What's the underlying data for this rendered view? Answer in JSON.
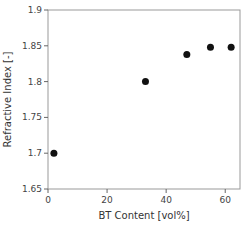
{
  "chart_data": {
    "type": "scatter",
    "xlabel": "BT Content [vol%]",
    "ylabel": "Refractive Index [-]",
    "x": [
      2,
      33,
      47,
      55,
      62
    ],
    "values": [
      1.7,
      1.8,
      1.838,
      1.848,
      1.848
    ],
    "color": "#111111",
    "xlim": [
      0,
      65
    ],
    "ylim": [
      1.65,
      1.9
    ],
    "xticks": [
      0,
      20,
      40,
      60
    ],
    "yticks": [
      1.65,
      1.7,
      1.75,
      1.8,
      1.85,
      1.9
    ]
  }
}
